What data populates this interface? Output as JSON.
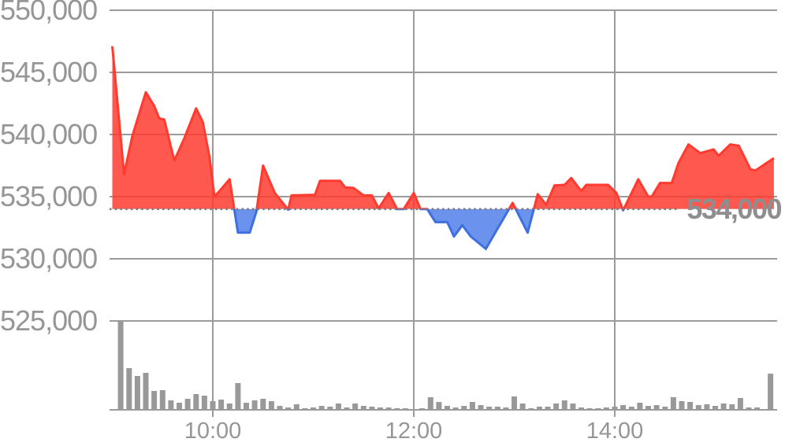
{
  "chart_data": {
    "type": "area",
    "title": "",
    "description": "Intraday stock price area chart (red above previous close, blue below) with volume bars",
    "baseline": {
      "value": 534000,
      "label": "534,000"
    },
    "y_axis": {
      "ticks": [
        {
          "value": 550000,
          "label": "550,000"
        },
        {
          "value": 545000,
          "label": "545,000"
        },
        {
          "value": 540000,
          "label": "540,000"
        },
        {
          "value": 535000,
          "label": "535,000"
        },
        {
          "value": 530000,
          "label": "530,000"
        },
        {
          "value": 525000,
          "label": "525,000"
        }
      ],
      "min": 525000,
      "max": 550000,
      "grid": true
    },
    "x_axis": {
      "start_time": "09:00",
      "end_time": "15:33",
      "minutes_span": 395,
      "ticks": [
        {
          "minutes": 60,
          "label": "10:00"
        },
        {
          "minutes": 180,
          "label": "12:00"
        },
        {
          "minutes": 300,
          "label": "14:00"
        }
      ],
      "grid": true
    },
    "price": {
      "unit": "minutes_from_0900, price",
      "points": [
        [
          0,
          547100
        ],
        [
          7,
          536800
        ],
        [
          12,
          539900
        ],
        [
          20,
          543400
        ],
        [
          25,
          542300
        ],
        [
          28,
          541300
        ],
        [
          31,
          541200
        ],
        [
          37,
          537900
        ],
        [
          43,
          539700
        ],
        [
          50,
          542100
        ],
        [
          54,
          541000
        ],
        [
          58,
          538200
        ],
        [
          61,
          535000
        ],
        [
          65,
          535600
        ],
        [
          70,
          536400
        ],
        [
          75,
          532100
        ],
        [
          82,
          532100
        ],
        [
          86,
          533800
        ],
        [
          90,
          537500
        ],
        [
          97,
          535300
        ],
        [
          105,
          533950
        ],
        [
          107,
          535100
        ],
        [
          121,
          535150
        ],
        [
          124,
          536270
        ],
        [
          136,
          536270
        ],
        [
          139,
          535750
        ],
        [
          144,
          535700
        ],
        [
          150,
          535100
        ],
        [
          155,
          535100
        ],
        [
          159,
          534050
        ],
        [
          165,
          535300
        ],
        [
          170,
          534000
        ],
        [
          174,
          534000
        ],
        [
          180,
          535300
        ],
        [
          184,
          534000
        ],
        [
          188,
          534000
        ],
        [
          193,
          532950
        ],
        [
          200,
          532950
        ],
        [
          204,
          531800
        ],
        [
          209,
          532700
        ],
        [
          214,
          531800
        ],
        [
          223,
          530800
        ],
        [
          239,
          534500
        ],
        [
          248,
          532100
        ],
        [
          254,
          535200
        ],
        [
          259,
          534350
        ],
        [
          264,
          535900
        ],
        [
          270,
          535950
        ],
        [
          274,
          536500
        ],
        [
          280,
          535450
        ],
        [
          283,
          535950
        ],
        [
          296,
          535950
        ],
        [
          301,
          535300
        ],
        [
          305,
          533900
        ],
        [
          314,
          536400
        ],
        [
          320,
          535000
        ],
        [
          322,
          535000
        ],
        [
          327,
          536100
        ],
        [
          334,
          536100
        ],
        [
          338,
          537700
        ],
        [
          344,
          539200
        ],
        [
          351,
          538500
        ],
        [
          359,
          538800
        ],
        [
          362,
          538300
        ],
        [
          369,
          539200
        ],
        [
          374,
          539100
        ],
        [
          381,
          537200
        ],
        [
          384,
          537100
        ],
        [
          395,
          538100
        ]
      ]
    },
    "volume": {
      "unit": "minutes_from_0900, relative_volume (no numeric axis shown)",
      "points": [
        [
          5,
          114
        ],
        [
          10,
          53
        ],
        [
          15,
          43
        ],
        [
          20,
          47
        ],
        [
          25,
          24
        ],
        [
          30,
          25
        ],
        [
          35,
          12
        ],
        [
          40,
          9
        ],
        [
          45,
          14
        ],
        [
          50,
          20
        ],
        [
          55,
          18
        ],
        [
          60,
          11
        ],
        [
          65,
          13
        ],
        [
          70,
          8
        ],
        [
          75,
          34
        ],
        [
          80,
          9
        ],
        [
          85,
          12
        ],
        [
          90,
          14
        ],
        [
          95,
          11
        ],
        [
          100,
          5
        ],
        [
          105,
          3
        ],
        [
          110,
          7
        ],
        [
          115,
          2
        ],
        [
          120,
          3
        ],
        [
          125,
          5
        ],
        [
          130,
          4
        ],
        [
          135,
          8
        ],
        [
          140,
          3
        ],
        [
          145,
          8
        ],
        [
          150,
          5
        ],
        [
          155,
          4
        ],
        [
          160,
          3
        ],
        [
          165,
          3
        ],
        [
          170,
          2
        ],
        [
          175,
          2
        ],
        [
          180,
          1
        ],
        [
          185,
          2
        ],
        [
          190,
          16
        ],
        [
          195,
          10
        ],
        [
          200,
          5
        ],
        [
          205,
          3
        ],
        [
          210,
          5
        ],
        [
          215,
          10
        ],
        [
          220,
          6
        ],
        [
          225,
          4
        ],
        [
          230,
          4
        ],
        [
          235,
          3
        ],
        [
          240,
          17
        ],
        [
          245,
          8
        ],
        [
          250,
          2
        ],
        [
          255,
          4
        ],
        [
          260,
          4
        ],
        [
          265,
          8
        ],
        [
          270,
          12
        ],
        [
          275,
          8
        ],
        [
          280,
          3
        ],
        [
          285,
          2
        ],
        [
          290,
          2
        ],
        [
          295,
          3
        ],
        [
          300,
          4
        ],
        [
          305,
          6
        ],
        [
          310,
          4
        ],
        [
          315,
          9
        ],
        [
          320,
          5
        ],
        [
          325,
          6
        ],
        [
          330,
          4
        ],
        [
          335,
          16
        ],
        [
          340,
          11
        ],
        [
          345,
          10
        ],
        [
          350,
          6
        ],
        [
          355,
          7
        ],
        [
          360,
          5
        ],
        [
          365,
          8
        ],
        [
          370,
          7
        ],
        [
          375,
          15
        ],
        [
          380,
          3
        ],
        [
          385,
          3
        ],
        [
          393,
          46
        ]
      ]
    },
    "colors": {
      "grid": "#9b9b9b",
      "axis_label": "#969696",
      "up_line": "#ff3b30",
      "up_fill": "rgba(255,59,48,0.85)",
      "down_line": "#3d6fe0",
      "down_fill": "rgba(70,120,233,0.8)",
      "volume_bar": "#999999",
      "baseline_dots": "#7a7a7a",
      "baseline_label": "#8e8e8e"
    },
    "legend": null
  }
}
